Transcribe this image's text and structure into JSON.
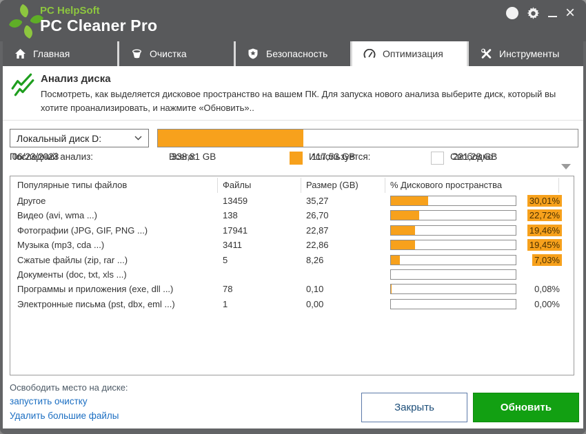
{
  "brand": {
    "company": "PC HelpSoft",
    "product": "PC Cleaner Pro"
  },
  "window_controls": {
    "help": "?",
    "close": "×"
  },
  "tabs": [
    {
      "label": "Главная",
      "icon": "home-icon",
      "active": false
    },
    {
      "label": "Очистка",
      "icon": "bucket-icon",
      "active": false
    },
    {
      "label": "Безопасность",
      "icon": "shield-icon",
      "active": false
    },
    {
      "label": "Оптимизация",
      "icon": "gauge-icon",
      "active": true
    },
    {
      "label": "Инструменты",
      "icon": "tools-icon",
      "active": false
    }
  ],
  "section": {
    "title": "Анализ диска",
    "description": "Посмотреть, как выделяется дисковое пространство на вашем ПК. Для запуска нового анализа выберите диск, который вы хотите проанализировать, и нажмите «Обновить».."
  },
  "disk": {
    "selected": "Локальный диск D:",
    "used_pct": 34.7
  },
  "summary": {
    "last_label": "Последний анализ:",
    "last_value": "06/23/2023",
    "total_label": "Всего:",
    "total_value": "338,81 GB",
    "used_label": "Используется:",
    "used_value": "117,53 GB",
    "free_label": "Свободно:",
    "free_value": "221,28 GB"
  },
  "table": {
    "columns": [
      "Популярные типы файлов",
      "Файлы",
      "Размер (GB)",
      "% Дискового пространства"
    ],
    "rows": [
      {
        "type": "Другое",
        "files": "13459",
        "size": "35,27",
        "pct": 30.01,
        "pct_label": "30,01%",
        "highlight": true
      },
      {
        "type": "Видео (avi, wma ...)",
        "files": "138",
        "size": "26,70",
        "pct": 22.72,
        "pct_label": "22,72%",
        "highlight": true
      },
      {
        "type": "Фотографии (JPG, GIF, PNG ...)",
        "files": "17941",
        "size": "22,87",
        "pct": 19.46,
        "pct_label": "19,46%",
        "highlight": true
      },
      {
        "type": "Музыка (mp3, cda ...)",
        "files": "3411",
        "size": "22,86",
        "pct": 19.45,
        "pct_label": "19,45%",
        "highlight": true
      },
      {
        "type": "Сжатые файлы (zip, rar ...)",
        "files": "5",
        "size": "8,26",
        "pct": 7.03,
        "pct_label": "7,03%",
        "highlight": true
      },
      {
        "type": "Документы (doc, txt, xls ...)",
        "files": "",
        "size": "",
        "pct": 0,
        "pct_label": "",
        "highlight": false
      },
      {
        "type": "Программы и приложения (exe, dll ...)",
        "files": "78",
        "size": "0,10",
        "pct": 0.08,
        "pct_label": "0,08%",
        "highlight": false
      },
      {
        "type": "Электронные письма (pst, dbx, eml ...)",
        "files": "1",
        "size": "0,00",
        "pct": 0.0,
        "pct_label": "0,00%",
        "highlight": false
      }
    ]
  },
  "footer": {
    "heading": "Освободить место на диске:",
    "links": [
      {
        "label": "запустить очистку"
      },
      {
        "label": "Удалить большие файлы"
      }
    ],
    "buttons": {
      "close": "Закрыть",
      "refresh": "Обновить"
    }
  },
  "colors": {
    "accent_orange": "#F7A11C",
    "button_green": "#12A012",
    "link_blue": "#1B6EC2",
    "brand_green": "#8DC63F",
    "header_gray": "#58595B"
  }
}
